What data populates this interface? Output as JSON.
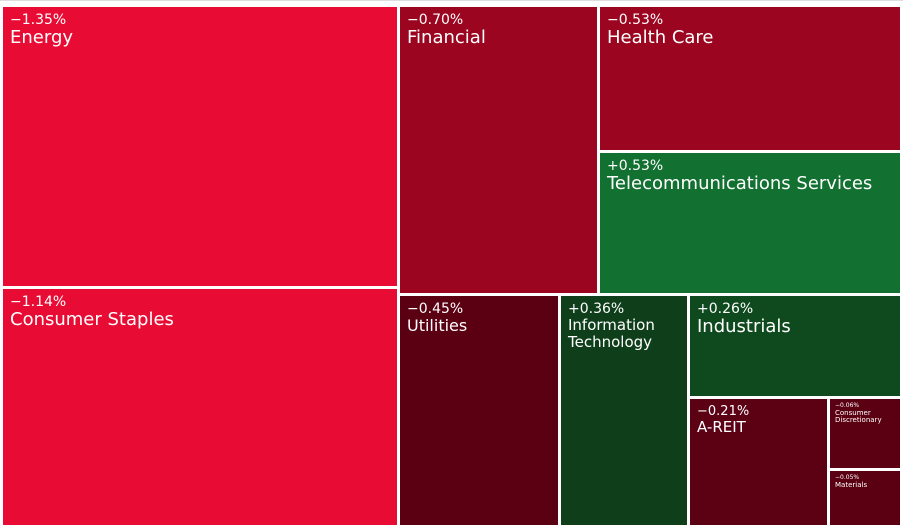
{
  "chart_data": {
    "type": "treemap",
    "categories": [
      "Energy",
      "Consumer Staples",
      "Financial",
      "Health Care",
      "Telecommunications Services",
      "Utilities",
      "Information Technology",
      "Industrials",
      "A-REIT",
      "Consumer Discretionary",
      "Materials"
    ],
    "values": [
      -1.35,
      -1.14,
      -0.7,
      -0.53,
      0.53,
      -0.45,
      0.36,
      0.26,
      -0.21,
      -0.06,
      -0.05
    ],
    "value_labels": [
      "−1.35%",
      "−1.14%",
      "−0.70%",
      "−0.53%",
      "+0.53%",
      "−0.45%",
      "+0.36%",
      "+0.26%",
      "−0.21%",
      "−0.06%",
      "−0.05%"
    ],
    "colors": [
      "#e80c35",
      "#e80c35",
      "#9b0520",
      "#9b0520",
      "#127030",
      "#5a0012",
      "#0e3e1a",
      "#0e4a1e",
      "#5c0014",
      "#5a0012",
      "#5a0012"
    ]
  }
}
